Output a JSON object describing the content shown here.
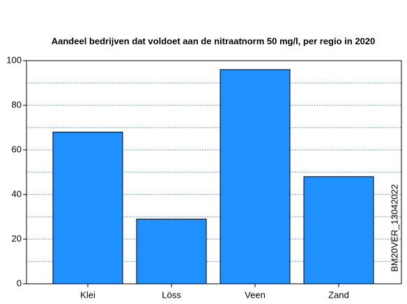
{
  "chart_data": {
    "type": "bar",
    "title": "Aandeel bedrijven dat voldoet aan de nitraatnorm 50 mg/l, per regio in 2020",
    "categories": [
      "Klei",
      "Löss",
      "Veen",
      "Zand"
    ],
    "values": [
      68,
      29,
      96,
      48
    ],
    "color": "#1e90ff",
    "ylim": [
      0,
      100
    ],
    "yticks": [
      0,
      20,
      40,
      60,
      80,
      100
    ],
    "grid": true,
    "grid_lines": [
      10,
      20,
      30,
      40,
      50,
      60,
      70,
      80,
      90
    ],
    "annotation": "BM20VER_13042022"
  }
}
